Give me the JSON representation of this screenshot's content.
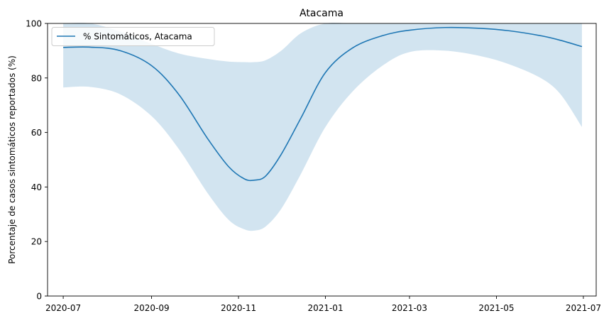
{
  "chart_data": {
    "type": "line",
    "title": "Atacama",
    "xlabel": "",
    "ylabel": "Porcentaje de casos sintomáticos reportados (%)",
    "ylim": [
      0,
      100
    ],
    "yticks": [
      0,
      20,
      40,
      60,
      80,
      100
    ],
    "xlim": [
      "2020-06-20",
      "2021-07-10"
    ],
    "xticks": [
      "2020-07-01",
      "2020-09-01",
      "2020-11-01",
      "2021-01-01",
      "2021-03-01",
      "2021-05-01",
      "2021-07-01"
    ],
    "xtick_labels": [
      "2020-07",
      "2020-09",
      "2020-11",
      "2021-01",
      "2021-03",
      "2021-05",
      "2021-07"
    ],
    "grid": false,
    "legend_position": "upper-left",
    "series": [
      {
        "name": "% Sintomáticos, Atacama",
        "color": "#1f77b4",
        "band_color": "#1f77b4",
        "band_opacity": 0.2,
        "x": [
          "2020-07-01",
          "2020-07-20",
          "2020-08-10",
          "2020-09-01",
          "2020-09-20",
          "2020-10-10",
          "2020-10-25",
          "2020-11-05",
          "2020-11-12",
          "2020-11-20",
          "2020-12-01",
          "2020-12-15",
          "2021-01-01",
          "2021-01-20",
          "2021-02-10",
          "2021-03-01",
          "2021-03-26",
          "2021-04-20",
          "2021-05-10",
          "2021-06-01",
          "2021-06-15",
          "2021-06-30"
        ],
        "y": [
          91.2,
          91.3,
          90.0,
          84.5,
          74.0,
          58.0,
          47.5,
          43.0,
          42.5,
          44.0,
          52.0,
          65.5,
          82.0,
          91.0,
          95.5,
          97.5,
          98.5,
          98.2,
          97.3,
          95.5,
          93.8,
          91.5
        ],
        "lower": [
          76.5,
          76.7,
          74.0,
          66.0,
          54.0,
          38.0,
          28.0,
          24.5,
          24.0,
          25.5,
          32.0,
          45.0,
          62.0,
          75.0,
          84.5,
          89.5,
          90.0,
          88.0,
          85.0,
          80.0,
          74.0,
          62.0
        ],
        "upper": [
          100,
          100,
          97.0,
          92.5,
          89.0,
          87.0,
          86.0,
          85.8,
          85.8,
          86.5,
          90.0,
          96.5,
          100,
          100,
          100,
          100,
          100,
          100,
          100,
          100,
          100,
          100
        ]
      }
    ]
  }
}
